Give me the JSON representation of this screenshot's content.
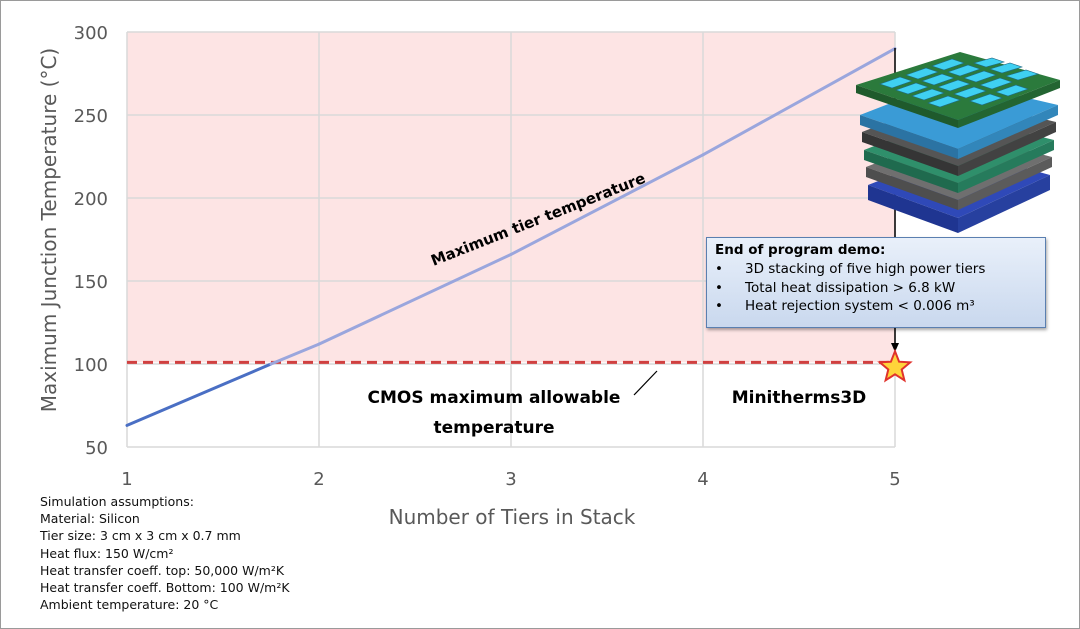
{
  "chart_data": {
    "type": "line",
    "xlabel": "Number of Tiers in Stack",
    "ylabel": "Maximum Junction Temperature (°C)",
    "xlim": [
      1,
      5
    ],
    "ylim": [
      50,
      300
    ],
    "x_ticks": [
      "1",
      "2",
      "3",
      "4",
      "5"
    ],
    "y_ticks": [
      "50",
      "100",
      "150",
      "200",
      "250",
      "300"
    ],
    "grid": true,
    "series": [
      {
        "name": "Maximum tier temperature",
        "x": [
          1,
          1.75,
          2,
          3,
          4,
          5
        ],
        "y": [
          63,
          100,
          112,
          166,
          226,
          290
        ],
        "color": "#4a6fc4",
        "color_above_limit": "#9aa6dd"
      },
      {
        "name": "CMOS maximum allowable temperature",
        "x": [
          1,
          5
        ],
        "y": [
          101,
          101
        ],
        "color": "#d04040",
        "style": "dashed"
      }
    ],
    "marker": {
      "label": "Minitherms3D",
      "x": 5,
      "y": 98,
      "color": "#ffd43a"
    },
    "shaded_region": {
      "y_from": 101,
      "y_to": 300,
      "color": "#fde4e4"
    },
    "annotations": {
      "curve_label": "Maximum tier temperature",
      "limit_label_line1": "CMOS maximum allowable",
      "limit_label_line2": "temperature",
      "marker_label": "Minitherms3D"
    }
  },
  "assumptions": {
    "title": "Simulation assumptions:",
    "material": "Material: Silicon",
    "tier_size": "Tier size: 3 cm x 3 cm x 0.7 mm",
    "heat_flux": "Heat flux: 150 W/cm²",
    "coeff_top": "Heat transfer coeff. top: 50,000 W/m²K",
    "coeff_bottom": "Heat transfer coeff. Bottom: 100 W/m²K",
    "ambient": "Ambient temperature: 20 °C"
  },
  "callout": {
    "title": "End of program demo:",
    "bullets": [
      "3D stacking of five high power tiers",
      "Total heat dissipation > 6.8 kW",
      "Heat rejection system < 0.006 m³"
    ],
    "bullet_char": "•"
  },
  "colors": {
    "shade": "#fde4e4",
    "grid": "#d9d9d9",
    "tick_text": "#595959",
    "limit_line": "#d04040"
  },
  "illustration": {
    "name": "chip-stack-image",
    "tiers": 5
  }
}
